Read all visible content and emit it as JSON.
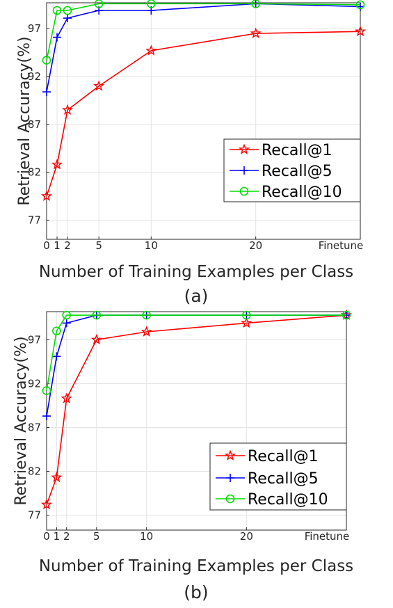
{
  "chart_data": [
    {
      "type": "line",
      "caption": "(a)",
      "xlabel": "Number of Training Examples per Class",
      "ylabel": "Retrieval Accuracy(%)",
      "x_tick_labels": [
        "0",
        "1",
        "2",
        "5",
        "10",
        "20",
        "Finetune"
      ],
      "x_tick_values": [
        0,
        1,
        2,
        5,
        10,
        20,
        30
      ],
      "y_tick_labels": [
        "77",
        "82",
        "87",
        "92",
        "97"
      ],
      "y_tick_values": [
        77,
        82,
        87,
        92,
        97
      ],
      "xlim": [
        0,
        30
      ],
      "ylim": [
        75,
        99.7
      ],
      "grid": true,
      "legend_position": "lower-right",
      "x": [
        0,
        1,
        2,
        5,
        10,
        20,
        30
      ],
      "series": [
        {
          "name": "Recall@1",
          "color": "#ff0000",
          "marker": "star",
          "values": [
            79.5,
            82.8,
            88.5,
            91.0,
            94.7,
            96.5,
            96.7
          ]
        },
        {
          "name": "Recall@5",
          "color": "#0000ff",
          "marker": "plus",
          "values": [
            90.4,
            96.1,
            98.1,
            98.9,
            98.9,
            99.6,
            99.3
          ]
        },
        {
          "name": "Recall@10",
          "color": "#00dd00",
          "marker": "circle",
          "values": [
            93.7,
            98.9,
            98.9,
            99.6,
            99.6,
            99.6,
            99.5
          ]
        }
      ]
    },
    {
      "type": "line",
      "caption": "(b)",
      "xlabel": "Number of Training Examples per Class",
      "ylabel": "Retrieval Accuracy(%)",
      "x_tick_labels": [
        "0",
        "1",
        "2",
        "5",
        "10",
        "20",
        "Finetune"
      ],
      "x_tick_values": [
        0,
        1,
        2,
        5,
        10,
        20,
        30
      ],
      "y_tick_labels": [
        "77",
        "82",
        "87",
        "92",
        "97"
      ],
      "y_tick_values": [
        77,
        82,
        87,
        92,
        97
      ],
      "xlim": [
        0,
        30
      ],
      "ylim": [
        75.3,
        100.2
      ],
      "grid": true,
      "legend_position": "lower-right",
      "x": [
        0,
        1,
        2,
        5,
        10,
        20,
        30
      ],
      "series": [
        {
          "name": "Recall@1",
          "color": "#ff0000",
          "marker": "star",
          "values": [
            78.2,
            81.3,
            90.3,
            97.0,
            97.9,
            98.9,
            99.8
          ]
        },
        {
          "name": "Recall@5",
          "color": "#0000ff",
          "marker": "plus",
          "values": [
            88.3,
            95.1,
            98.9,
            99.8,
            99.8,
            99.8,
            99.8
          ]
        },
        {
          "name": "Recall@10",
          "color": "#00dd00",
          "marker": "circle",
          "values": [
            91.2,
            98.0,
            99.8,
            99.8,
            99.8,
            99.8,
            99.8
          ]
        }
      ]
    }
  ]
}
